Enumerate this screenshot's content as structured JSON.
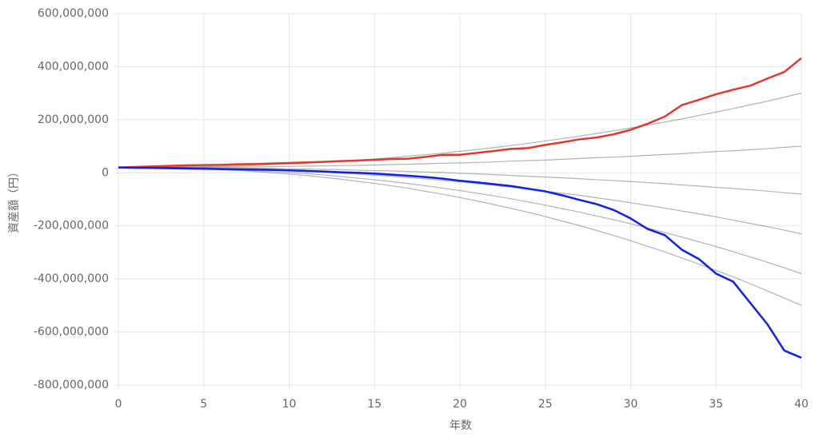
{
  "chart_data": {
    "type": "line",
    "x_label": "年数",
    "y_label": "資産額（円）",
    "x": [
      0,
      1,
      2,
      3,
      4,
      5,
      6,
      7,
      8,
      9,
      10,
      11,
      12,
      13,
      14,
      15,
      16,
      17,
      18,
      19,
      20,
      21,
      22,
      23,
      24,
      25,
      26,
      27,
      28,
      29,
      30,
      31,
      32,
      33,
      34,
      35,
      36,
      37,
      38,
      39,
      40
    ],
    "xlim": [
      0,
      40
    ],
    "xticks": [
      0,
      5,
      10,
      15,
      20,
      25,
      30,
      35,
      40
    ],
    "ylim": [
      -800000000,
      600000000
    ],
    "yticks": [
      {
        "value": 600000000,
        "label": "600,000,000"
      },
      {
        "value": 400000000,
        "label": "400,000,000"
      },
      {
        "value": 200000000,
        "label": "200,000,000"
      },
      0,
      {
        "value": -200000000,
        "label": "-200,000,000"
      },
      {
        "value": -400000000,
        "label": "-400,000,000"
      },
      {
        "value": -600000000,
        "label": "-600,000,000"
      },
      {
        "value": -800000000,
        "label": "-800,000,000"
      }
    ],
    "grid": true,
    "series": [
      {
        "color": "rgba(0,0,0,0.3)",
        "values": [
          20000000,
          20000000,
          20000000,
          21000000,
          22000000,
          23000000,
          24000000,
          26000000,
          28000000,
          31000000,
          33000000,
          36000000,
          40000000,
          44000000,
          48000000,
          52000000,
          57000000,
          63000000,
          68000000,
          74000000,
          81000000,
          88000000,
          95000000,
          103000000,
          111000000,
          120000000,
          129000000,
          138000000,
          148000000,
          158000000,
          169000000,
          180000000,
          191000000,
          203000000,
          216000000,
          229000000,
          242000000,
          256000000,
          270000000,
          285000000,
          300000000
        ]
      },
      {
        "color": "rgba(0,0,0,0.3)",
        "values": [
          20000000,
          20000000,
          20000000,
          20000000,
          21000000,
          21000000,
          21000000,
          22000000,
          22000000,
          23000000,
          24000000,
          25000000,
          26000000,
          27000000,
          28000000,
          29000000,
          31000000,
          32000000,
          34000000,
          36000000,
          37000000,
          39000000,
          41000000,
          44000000,
          46000000,
          48000000,
          51000000,
          54000000,
          57000000,
          59000000,
          62000000,
          66000000,
          69000000,
          72000000,
          76000000,
          80000000,
          83000000,
          87000000,
          91000000,
          96000000,
          100000000
        ]
      },
      {
        "color": "rgba(0,0,0,0.3)",
        "values": [
          20000000,
          20000000,
          20000000,
          20000000,
          19000000,
          19000000,
          18000000,
          18000000,
          17000000,
          16000000,
          15000000,
          14000000,
          13000000,
          12000000,
          10000000,
          8000000,
          7000000,
          5000000,
          3000000,
          1000000,
          -2000000,
          -4000000,
          -7000000,
          -10000000,
          -13000000,
          -16000000,
          -19000000,
          -22000000,
          -26000000,
          -29000000,
          -33000000,
          -37000000,
          -41000000,
          -46000000,
          -50000000,
          -55000000,
          -59000000,
          -64000000,
          -69000000,
          -75000000,
          -80000000
        ]
      },
      {
        "color": "rgba(0,0,0,0.3)",
        "values": [
          20000000,
          20000000,
          20000000,
          19000000,
          18000000,
          17000000,
          16000000,
          15000000,
          13000000,
          11000000,
          8000000,
          5000000,
          2000000,
          -1000000,
          -5000000,
          -9000000,
          -13000000,
          -18000000,
          -23000000,
          -29000000,
          -34000000,
          -41000000,
          -47000000,
          -54000000,
          -61000000,
          -69000000,
          -77000000,
          -85000000,
          -94000000,
          -103000000,
          -113000000,
          -123000000,
          -133000000,
          -144000000,
          -155000000,
          -166000000,
          -178000000,
          -191000000,
          -203000000,
          -216000000,
          -230000000
        ]
      },
      {
        "color": "rgba(0,0,0,0.3)",
        "values": [
          20000000,
          20000000,
          19000000,
          19000000,
          17000000,
          16000000,
          14000000,
          11000000,
          8000000,
          5000000,
          1000000,
          -3000000,
          -8000000,
          -14000000,
          -20000000,
          -26000000,
          -33000000,
          -41000000,
          -49000000,
          -58000000,
          -67000000,
          -77000000,
          -87000000,
          -98000000,
          -110000000,
          -122000000,
          -135000000,
          -148000000,
          -163000000,
          -177000000,
          -192000000,
          -208000000,
          -225000000,
          -242000000,
          -260000000,
          -278000000,
          -297000000,
          -317000000,
          -337000000,
          -358000000,
          -380000000
        ]
      },
      {
        "color": "rgba(0,0,0,0.3)",
        "values": [
          20000000,
          20000000,
          19000000,
          18000000,
          17000000,
          15000000,
          12000000,
          9000000,
          5000000,
          0,
          -5000000,
          -10000000,
          -17000000,
          -24000000,
          -32000000,
          -40000000,
          -49000000,
          -59000000,
          -70000000,
          -81000000,
          -93000000,
          -106000000,
          -120000000,
          -134000000,
          -149000000,
          -165000000,
          -182000000,
          -199000000,
          -217000000,
          -236000000,
          -256000000,
          -277000000,
          -298000000,
          -321000000,
          -344000000,
          -368000000,
          -392000000,
          -418000000,
          -445000000,
          -472000000,
          -500000000
        ]
      },
      {
        "color": "#e0392b",
        "values": [
          20000000,
          22000000,
          24000000,
          26000000,
          28000000,
          29000000,
          30000000,
          32000000,
          33000000,
          35000000,
          37000000,
          39000000,
          41000000,
          44000000,
          46000000,
          49000000,
          52000000,
          53000000,
          60000000,
          68000000,
          68000000,
          75000000,
          82000000,
          90000000,
          93000000,
          105000000,
          115000000,
          126000000,
          133000000,
          145000000,
          162000000,
          185000000,
          212000000,
          255000000,
          275000000,
          296000000,
          313000000,
          328000000,
          355000000,
          380000000,
          432000000
        ]
      },
      {
        "color": "#1020ee",
        "values": [
          20000000,
          19000000,
          18000000,
          17000000,
          16000000,
          15000000,
          14000000,
          13000000,
          12000000,
          11000000,
          9000000,
          7000000,
          5000000,
          2000000,
          0,
          -3000000,
          -7000000,
          -11000000,
          -16000000,
          -22000000,
          -30000000,
          -36000000,
          -43000000,
          -50000000,
          -60000000,
          -70000000,
          -85000000,
          -102000000,
          -118000000,
          -140000000,
          -172000000,
          -212000000,
          -235000000,
          -290000000,
          -325000000,
          -380000000,
          -410000000,
          -490000000,
          -570000000,
          -670000000,
          -697000000
        ]
      }
    ]
  }
}
